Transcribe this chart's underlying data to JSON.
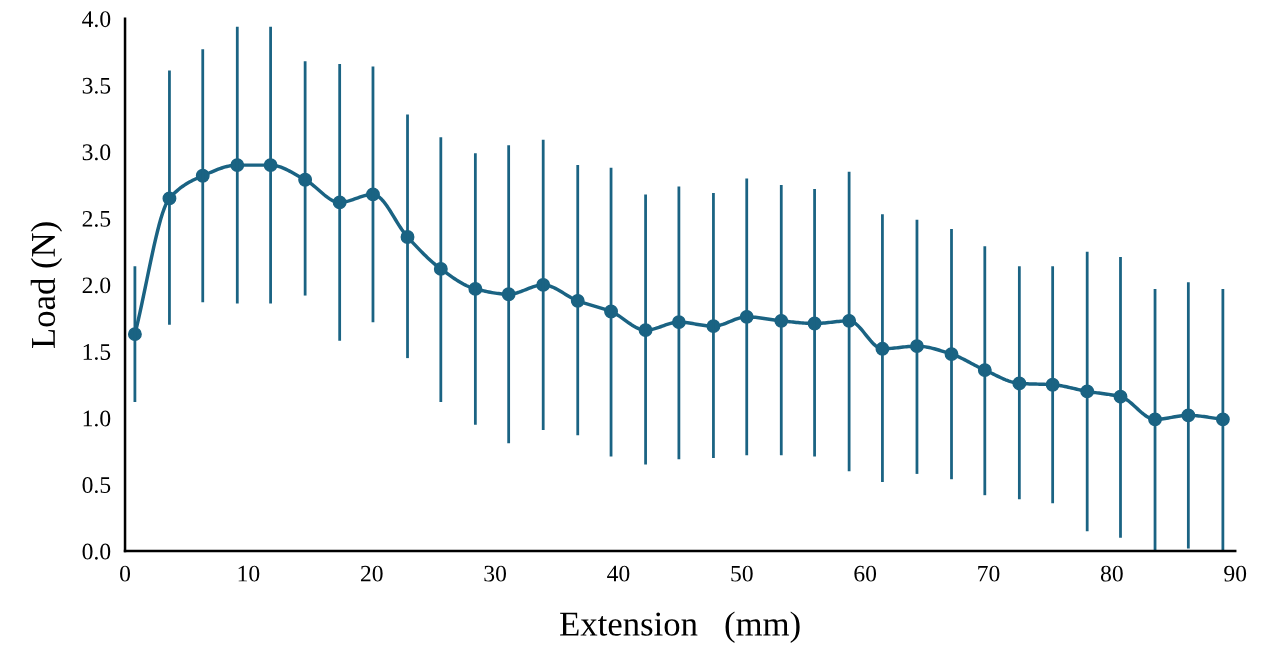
{
  "chart_data": {
    "type": "line",
    "xlabel": "Extension   (mm)",
    "ylabel": "Load (N)",
    "xlim": [
      0,
      90
    ],
    "xticks": [
      0,
      10,
      20,
      30,
      40,
      50,
      60,
      70,
      80,
      90
    ],
    "ylim": [
      0,
      4
    ],
    "yticks": [
      {
        "value": 0,
        "label": "0.0"
      },
      {
        "value": 0.5,
        "label": "0.5"
      },
      {
        "value": 1,
        "label": "1.0"
      },
      {
        "value": 1.5,
        "label": "1.5"
      },
      {
        "value": 2,
        "label": "2.0"
      },
      {
        "value": 2.5,
        "label": "2.5"
      },
      {
        "value": 3,
        "label": "3.0"
      },
      {
        "value": 3.5,
        "label": "3.5"
      },
      {
        "value": 4,
        "label": "4.0"
      }
    ],
    "grid": false,
    "marker": "circle",
    "line_style": "solid",
    "x": [
      0.8,
      3.6,
      6.3,
      9.1,
      11.8,
      14.6,
      17.4,
      20.1,
      22.9,
      25.6,
      28.4,
      31.1,
      33.9,
      36.7,
      39.4,
      42.2,
      44.9,
      47.7,
      50.4,
      53.2,
      55.9,
      58.7,
      61.4,
      64.2,
      67.0,
      69.7,
      72.5,
      75.2,
      78.0,
      80.7,
      83.5,
      86.2,
      89.0
    ],
    "series": [
      {
        "color": "#1a6383",
        "values": [
          1.63,
          2.65,
          2.82,
          2.9,
          2.9,
          2.79,
          2.62,
          2.68,
          2.36,
          2.12,
          1.97,
          1.93,
          2.0,
          1.88,
          1.8,
          1.66,
          1.72,
          1.69,
          1.76,
          1.73,
          1.71,
          1.73,
          1.52,
          1.54,
          1.48,
          1.36,
          1.26,
          1.25,
          1.2,
          1.16,
          0.99,
          1.02,
          0.99
        ],
        "errors": [
          [
            1.12,
            2.14
          ],
          [
            1.7,
            3.61
          ],
          [
            1.87,
            3.77
          ],
          [
            1.86,
            3.94
          ],
          [
            1.86,
            3.94
          ],
          [
            1.92,
            3.68
          ],
          [
            1.58,
            3.66
          ],
          [
            1.72,
            3.64
          ],
          [
            1.45,
            3.28
          ],
          [
            1.12,
            3.11
          ],
          [
            0.95,
            2.99
          ],
          [
            0.81,
            3.05
          ],
          [
            0.91,
            3.09
          ],
          [
            0.87,
            2.9
          ],
          [
            0.71,
            2.88
          ],
          [
            0.65,
            2.68
          ],
          [
            0.69,
            2.74
          ],
          [
            0.7,
            2.69
          ],
          [
            0.72,
            2.8
          ],
          [
            0.72,
            2.75
          ],
          [
            0.71,
            2.72
          ],
          [
            0.6,
            2.85
          ],
          [
            0.52,
            2.53
          ],
          [
            0.58,
            2.49
          ],
          [
            0.54,
            2.42
          ],
          [
            0.42,
            2.29
          ],
          [
            0.39,
            2.14
          ],
          [
            0.36,
            2.14
          ],
          [
            0.15,
            2.25
          ],
          [
            0.1,
            2.21
          ],
          [
            0,
            1.97
          ],
          [
            0.02,
            2.02
          ],
          [
            0,
            1.97
          ]
        ]
      }
    ]
  }
}
